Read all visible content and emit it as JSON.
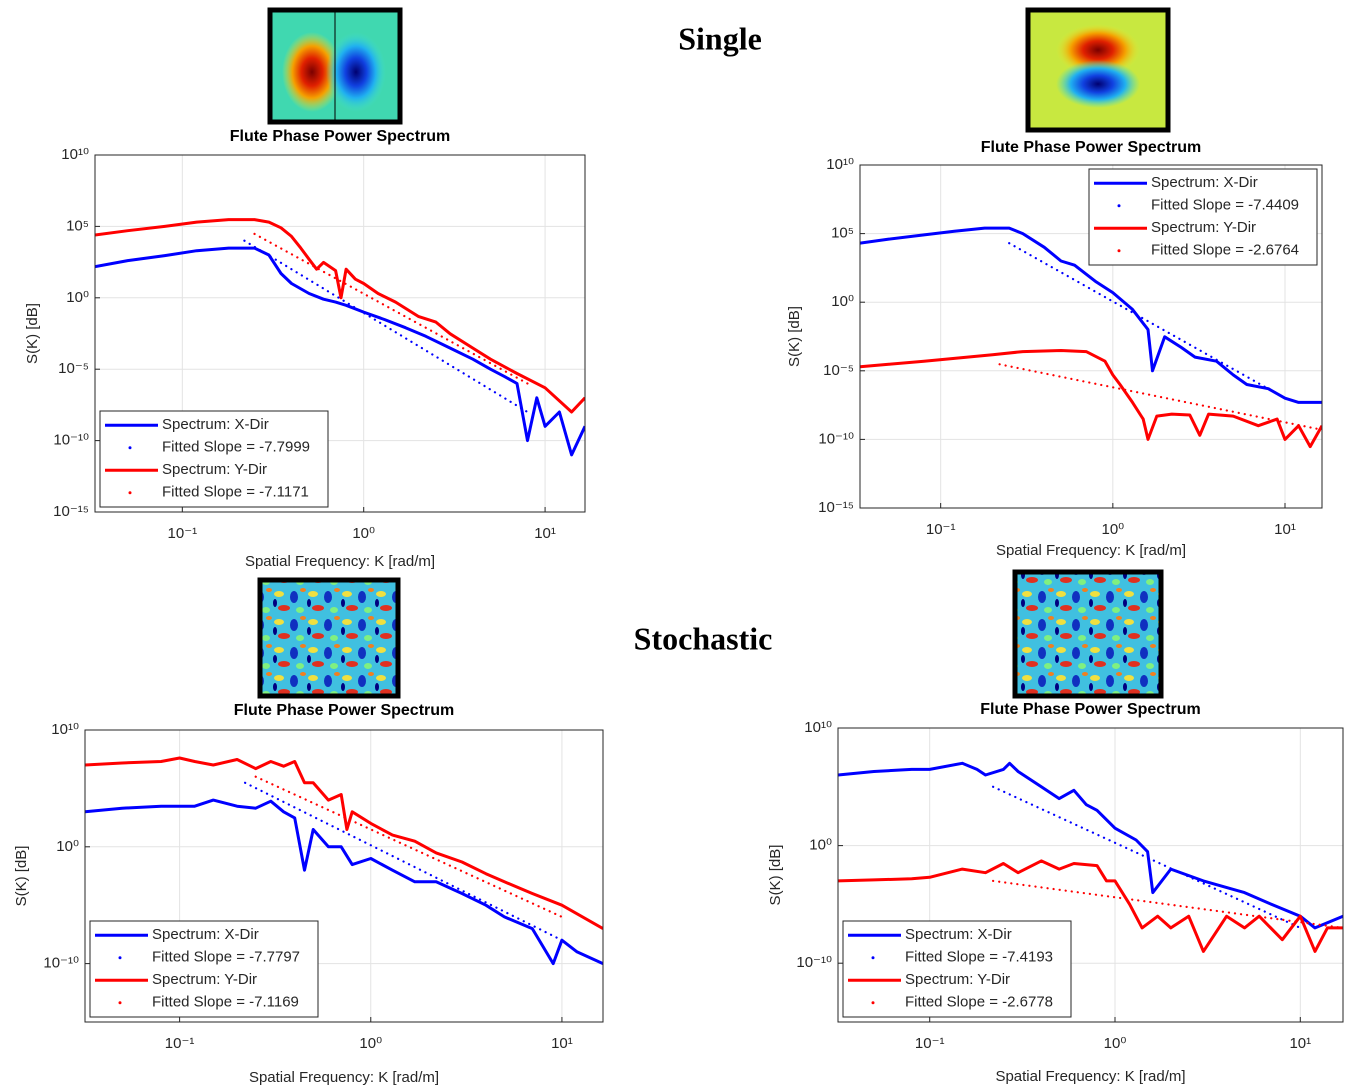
{
  "section_titles": [
    "Single",
    "Stochastic"
  ],
  "chart_data": [
    {
      "type": "line",
      "title": "Flute Phase Power Spectrum",
      "xlabel": "Spatial Frequency: K [rad/m]",
      "ylabel": "S(K) [dB]",
      "xscale": "log",
      "yscale": "log",
      "grid": true,
      "legend": "lower left",
      "xlim": [
        0.033,
        16.6
      ],
      "ylim": [
        1e-15,
        10000000000.0
      ],
      "xticks": [
        {
          "value": 0.1,
          "label": "10⁻¹"
        },
        {
          "value": 1,
          "label": "10⁰"
        },
        {
          "value": 10,
          "label": "10¹"
        }
      ],
      "yticks": [
        {
          "value": 10000000000.0,
          "label": "10¹⁰"
        },
        {
          "value": 100000.0,
          "label": "10⁵"
        },
        {
          "value": 1,
          "label": "10⁰"
        },
        {
          "value": 1e-05,
          "label": "10⁻⁵"
        },
        {
          "value": 1e-10,
          "label": "10⁻¹⁰"
        },
        {
          "value": 1e-15,
          "label": "10⁻¹⁵"
        }
      ],
      "series": [
        {
          "name": "Spectrum: X-Dir",
          "color": "#0000ff",
          "style": "solid",
          "x": [
            0.033,
            0.05,
            0.08,
            0.12,
            0.18,
            0.25,
            0.3,
            0.35,
            0.4,
            0.5,
            0.6,
            0.7,
            0.8,
            1,
            1.3,
            1.7,
            2.2,
            3,
            4,
            5,
            6,
            7,
            8,
            9,
            10,
            12,
            14,
            16.6
          ],
          "values": [
            150,
            400,
            900,
            2000,
            3000,
            3000,
            1000,
            50,
            10,
            2,
            0.8,
            0.5,
            0.3,
            0.1,
            0.03,
            0.008,
            0.002,
            0.0003,
            5e-05,
            1e-05,
            3e-06,
            1e-06,
            1e-10,
            1e-07,
            1e-09,
            1e-08,
            1e-11,
            1e-09
          ]
        },
        {
          "name": "Fitted Slope = -7.7999",
          "color": "#0000ff",
          "style": "dotted",
          "x": [
            0.22,
            8
          ],
          "values": [
            10000.0,
            1e-08
          ]
        },
        {
          "name": "Spectrum: Y-Dir",
          "color": "#ff0000",
          "style": "solid",
          "x": [
            0.033,
            0.05,
            0.08,
            0.12,
            0.18,
            0.25,
            0.3,
            0.35,
            0.4,
            0.45,
            0.5,
            0.55,
            0.6,
            0.7,
            0.75,
            0.8,
            0.9,
            1,
            1.2,
            1.5,
            2,
            2.5,
            3,
            4,
            5,
            7,
            10,
            14,
            16.6
          ],
          "values": [
            25000.0,
            50000.0,
            100000.0,
            200000.0,
            300000.0,
            300000.0,
            200000.0,
            80000.0,
            20000.0,
            3000.0,
            500,
            100,
            300,
            80,
            1,
            100,
            20,
            10,
            2,
            0.5,
            0.05,
            0.02,
            0.003,
            0.0003,
            5e-05,
            5e-06,
            5e-07,
            1e-08,
            1e-07
          ]
        },
        {
          "name": "Fitted Slope = -7.1171",
          "color": "#ff0000",
          "style": "dotted",
          "x": [
            0.25,
            8
          ],
          "values": [
            30000.0,
            1e-06
          ]
        }
      ]
    },
    {
      "type": "line",
      "title": "Flute Phase Power Spectrum",
      "xlabel": "Spatial Frequency: K [rad/m]",
      "ylabel": "S(K) [dB]",
      "xscale": "log",
      "yscale": "log",
      "grid": true,
      "legend": "upper right",
      "xlim": [
        0.034,
        16.4
      ],
      "ylim": [
        1e-15,
        10000000000.0
      ],
      "xticks": [
        {
          "value": 0.1,
          "label": "10⁻¹"
        },
        {
          "value": 1,
          "label": "10⁰"
        },
        {
          "value": 10,
          "label": "10¹"
        }
      ],
      "yticks": [
        {
          "value": 10000000000.0,
          "label": "10¹⁰"
        },
        {
          "value": 100000.0,
          "label": "10⁵"
        },
        {
          "value": 1,
          "label": "10⁰"
        },
        {
          "value": 1e-05,
          "label": "10⁻⁵"
        },
        {
          "value": 1e-10,
          "label": "10⁻¹⁰"
        },
        {
          "value": 1e-15,
          "label": "10⁻¹⁵"
        }
      ],
      "series": [
        {
          "name": "Spectrum: X-Dir",
          "color": "#0000ff",
          "style": "solid",
          "x": [
            0.034,
            0.05,
            0.08,
            0.12,
            0.18,
            0.25,
            0.3,
            0.4,
            0.5,
            0.6,
            0.8,
            1,
            1.3,
            1.6,
            1.7,
            2,
            2.5,
            3,
            4,
            5,
            6,
            8,
            10,
            12,
            16.4
          ],
          "values": [
            20000.0,
            40000.0,
            80000.0,
            150000.0,
            250000.0,
            250000.0,
            100000.0,
            10000.0,
            1000.0,
            500,
            30,
            5,
            0.3,
            0.01,
            1e-05,
            0.003,
            0.0005,
            0.0001,
            5e-05,
            5e-06,
            1e-06,
            5e-07,
            1e-07,
            5e-08,
            5e-08
          ]
        },
        {
          "name": "Fitted Slope = -7.4409",
          "color": "#0000ff",
          "style": "dotted",
          "x": [
            0.25,
            10
          ],
          "values": [
            20000.0,
            1e-07
          ]
        },
        {
          "name": "Spectrum: Y-Dir",
          "color": "#ff0000",
          "style": "solid",
          "x": [
            0.034,
            0.05,
            0.08,
            0.12,
            0.2,
            0.3,
            0.5,
            0.7,
            0.9,
            1,
            1.1,
            1.3,
            1.5,
            1.6,
            1.8,
            2.2,
            2.8,
            3.2,
            3.6,
            5,
            7,
            9,
            10,
            12,
            14,
            16.4
          ],
          "values": [
            2e-05,
            3e-05,
            5e-05,
            8e-05,
            0.00015,
            0.00025,
            0.0003,
            0.00025,
            5e-05,
            5e-06,
            1e-06,
            5e-08,
            3e-09,
            1e-10,
            5e-09,
            7e-09,
            6e-09,
            2e-10,
            7e-09,
            5e-09,
            1e-09,
            3e-09,
            1e-10,
            1e-09,
            3e-11,
            1e-09
          ]
        },
        {
          "name": "Fitted Slope = -2.6764",
          "color": "#ff0000",
          "style": "dotted",
          "x": [
            0.22,
            16.4
          ],
          "values": [
            3e-05,
            5e-10
          ]
        }
      ]
    },
    {
      "type": "line",
      "title": "Flute Phase Power Spectrum",
      "xlabel": "Spatial Frequency: K [rad/m]",
      "ylabel": "S(K) [dB]",
      "xscale": "log",
      "yscale": "log",
      "grid": true,
      "legend": "lower left",
      "xlim": [
        0.032,
        16.4
      ],
      "ylim": [
        1e-15,
        10000000000.0
      ],
      "xticks": [
        {
          "value": 0.1,
          "label": "10⁻¹"
        },
        {
          "value": 1,
          "label": "10⁰"
        },
        {
          "value": 10,
          "label": "10¹"
        }
      ],
      "yticks": [
        {
          "value": 10000000000.0,
          "label": "10¹⁰"
        },
        {
          "value": 1,
          "label": "10⁰"
        },
        {
          "value": 1e-10,
          "label": "10⁻¹⁰"
        }
      ],
      "series": [
        {
          "name": "Spectrum: X-Dir",
          "color": "#0000ff",
          "style": "solid",
          "x": [
            0.032,
            0.05,
            0.08,
            0.12,
            0.15,
            0.2,
            0.25,
            0.3,
            0.35,
            0.4,
            0.45,
            0.5,
            0.6,
            0.7,
            0.8,
            1,
            1.3,
            1.7,
            2.2,
            3,
            4,
            5,
            7,
            9,
            10,
            12,
            16.4
          ],
          "values": [
            1000.0,
            2000.0,
            3000.0,
            3000.0,
            10000.0,
            3000.0,
            2000.0,
            8000.0,
            1000.0,
            300.0,
            0.01,
            30.0,
            1,
            1,
            0.03,
            0.1,
            0.01,
            0.001,
            0.001,
            0.0001,
            1e-05,
            1e-06,
            1e-07,
            1e-10,
            1e-08,
            1e-09,
            1e-10
          ]
        },
        {
          "name": "Fitted Slope = -7.7797",
          "color": "#0000ff",
          "style": "dotted",
          "x": [
            0.22,
            10
          ],
          "values": [
            300000.0,
            1e-08
          ]
        },
        {
          "name": "Spectrum: Y-Dir",
          "color": "#ff0000",
          "style": "solid",
          "x": [
            0.032,
            0.05,
            0.08,
            0.1,
            0.12,
            0.15,
            0.2,
            0.25,
            0.3,
            0.35,
            0.4,
            0.45,
            0.5,
            0.6,
            0.7,
            0.75,
            0.8,
            1,
            1.3,
            1.7,
            2.2,
            3,
            4,
            5,
            7,
            10,
            16.4
          ],
          "values": [
            10000000.0,
            15000000.0,
            20000000.0,
            40000000.0,
            20000000.0,
            10000000.0,
            30000000.0,
            5000000.0,
            20000000.0,
            8000000.0,
            20000000.0,
            300000.0,
            300000.0,
            10000.0,
            30000.0,
            30,
            1000.0,
            100,
            10,
            3,
            0.3,
            0.05,
            0.005,
            0.001,
            0.0001,
            1e-05,
            1e-07
          ]
        },
        {
          "name": "Fitted Slope = -7.1169",
          "color": "#ff0000",
          "style": "dotted",
          "x": [
            0.25,
            10
          ],
          "values": [
            1000000.0,
            1e-06
          ]
        }
      ]
    },
    {
      "type": "line",
      "title": "Flute Phase Power Spectrum",
      "xlabel": "Spatial Frequency: K [rad/m]",
      "ylabel": "S(K) [dB]",
      "xscale": "log",
      "yscale": "log",
      "grid": true,
      "legend": "lower left",
      "xlim": [
        0.032,
        17
      ],
      "ylim": [
        1e-15,
        10000000000.0
      ],
      "xticks": [
        {
          "value": 0.1,
          "label": "10⁻¹"
        },
        {
          "value": 1,
          "label": "10⁰"
        },
        {
          "value": 10,
          "label": "10¹"
        }
      ],
      "yticks": [
        {
          "value": 10000000000.0,
          "label": "10¹⁰"
        },
        {
          "value": 1,
          "label": "10⁰"
        },
        {
          "value": 1e-10,
          "label": "10⁻¹⁰"
        }
      ],
      "series": [
        {
          "name": "Spectrum: X-Dir",
          "color": "#0000ff",
          "style": "solid",
          "x": [
            0.032,
            0.05,
            0.08,
            0.1,
            0.15,
            0.18,
            0.2,
            0.25,
            0.27,
            0.3,
            0.4,
            0.5,
            0.6,
            0.7,
            0.8,
            1,
            1.3,
            1.5,
            1.6,
            2,
            3,
            5,
            7,
            10,
            12,
            17
          ],
          "values": [
            1000000.0,
            2000000.0,
            3000000.0,
            3000000.0,
            10000000.0,
            3000000.0,
            1000000.0,
            3000000.0,
            10000000.0,
            2000000.0,
            100000.0,
            10000.0,
            50000.0,
            3000.0,
            1000.0,
            30,
            3,
            0.3,
            0.0001,
            0.01,
            0.001,
            0.0001,
            1e-05,
            1e-06,
            1e-07,
            1e-06
          ]
        },
        {
          "name": "Fitted Slope = -7.4193",
          "color": "#0000ff",
          "style": "dotted",
          "x": [
            0.22,
            10
          ],
          "values": [
            100000.0,
            1e-07
          ]
        },
        {
          "name": "Spectrum: Y-Dir",
          "color": "#ff0000",
          "style": "solid",
          "x": [
            0.032,
            0.05,
            0.08,
            0.1,
            0.15,
            0.2,
            0.25,
            0.3,
            0.4,
            0.5,
            0.6,
            0.8,
            0.9,
            1,
            1.2,
            1.4,
            1.7,
            2,
            2.5,
            3,
            4,
            5,
            6,
            8,
            10,
            12,
            14,
            17
          ],
          "values": [
            0.001,
            0.0012,
            0.0015,
            0.002,
            0.01,
            0.005,
            0.03,
            0.005,
            0.05,
            0.01,
            0.03,
            0.02,
            0.001,
            0.001,
            1e-05,
            1e-07,
            1e-06,
            1e-07,
            1e-06,
            1e-09,
            1e-06,
            1e-07,
            1e-06,
            1e-08,
            1e-06,
            1e-09,
            1e-07,
            1e-07
          ]
        },
        {
          "name": "Fitted Slope = -2.6778",
          "color": "#ff0000",
          "style": "dotted",
          "x": [
            0.22,
            17
          ],
          "values": [
            0.001,
            1e-07
          ]
        }
      ]
    }
  ]
}
